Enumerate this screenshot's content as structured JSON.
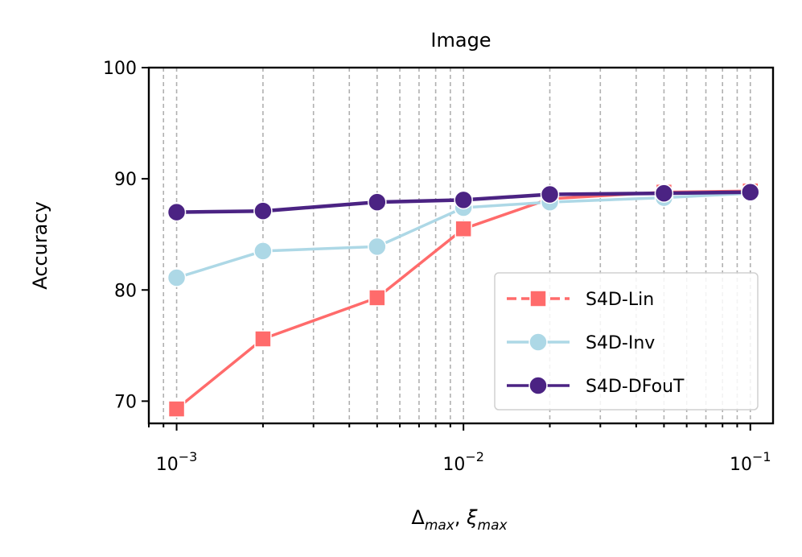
{
  "chart_data": {
    "type": "line",
    "title": "Image",
    "xlabel": "Δmax, ξmax",
    "xlabel_parts": {
      "delta": "Δ",
      "xi": "ξ",
      "sub": "max",
      "sep": ", "
    },
    "ylabel": "Accuracy",
    "xscale": "log",
    "xlim": [
      0.0008,
      0.12
    ],
    "ylim": [
      68,
      100
    ],
    "xticks": [
      {
        "value": 0.001,
        "base": "10",
        "exp": "−3"
      },
      {
        "value": 0.01,
        "base": "10",
        "exp": "−2"
      },
      {
        "value": 0.1,
        "base": "10",
        "exp": "−1"
      }
    ],
    "yticks": [
      {
        "value": 70,
        "label": "70"
      },
      {
        "value": 80,
        "label": "80"
      },
      {
        "value": 90,
        "label": "90"
      },
      {
        "value": 100,
        "label": "100"
      }
    ],
    "grid": "x-minor-and-major-dashed",
    "legend": "lower-right",
    "x": [
      0.001,
      0.002,
      0.005,
      0.01,
      0.02,
      0.05,
      0.1
    ],
    "series": [
      {
        "name": "S4D-Lin",
        "color": "#ff6b6b",
        "marker": "square",
        "dashed": true,
        "values": [
          69.3,
          75.6,
          79.3,
          85.5,
          88.2,
          88.8,
          88.9
        ]
      },
      {
        "name": "S4D-Inv",
        "color": "#add8e6",
        "marker": "circle",
        "dashed": false,
        "values": [
          81.1,
          83.5,
          83.9,
          87.4,
          87.9,
          88.3,
          88.7
        ]
      },
      {
        "name": "S4D-DFouT",
        "color": "#4b2383",
        "marker": "circle",
        "dashed": false,
        "values": [
          87.0,
          87.1,
          87.9,
          88.1,
          88.6,
          88.7,
          88.8
        ]
      }
    ]
  }
}
